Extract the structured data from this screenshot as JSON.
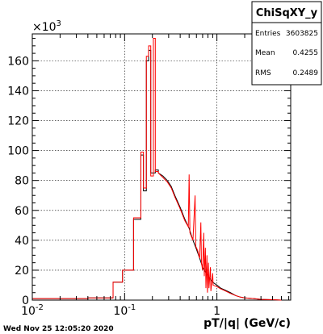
{
  "chart_data": {
    "type": "line",
    "title": "",
    "xlabel": "pT/|q| (GeV/c)",
    "ylabel": "",
    "x_scale": "log",
    "xlim": [
      0.01,
      6.3
    ],
    "ylim": [
      0,
      178000
    ],
    "y_exponent_label": "×10³",
    "y_exponent_sup": "3",
    "y_ticks": [
      0,
      20000,
      40000,
      60000,
      80000,
      100000,
      120000,
      140000,
      160000
    ],
    "y_tick_labels": [
      "0",
      "20",
      "40",
      "60",
      "80",
      "100",
      "120",
      "140",
      "160"
    ],
    "x_tick_labels": [
      {
        "value": 0.01,
        "base": "10",
        "exp": "-2"
      },
      {
        "value": 0.1,
        "base": "10",
        "exp": "-1"
      },
      {
        "value": 1,
        "text": "1"
      }
    ],
    "grid": true,
    "series": [
      {
        "color": "#000000",
        "points": [
          [
            0.01,
            0
          ],
          [
            0.01,
            1000
          ],
          [
            0.04,
            1000
          ],
          [
            0.04,
            1500
          ],
          [
            0.075,
            1500
          ],
          [
            0.075,
            12000
          ],
          [
            0.095,
            12000
          ],
          [
            0.095,
            20000
          ],
          [
            0.125,
            20000
          ],
          [
            0.125,
            54000
          ],
          [
            0.15,
            54000
          ],
          [
            0.15,
            97000
          ],
          [
            0.16,
            97000
          ],
          [
            0.16,
            73000
          ],
          [
            0.172,
            73000
          ],
          [
            0.172,
            160000
          ],
          [
            0.182,
            160000
          ],
          [
            0.182,
            167000
          ],
          [
            0.192,
            167000
          ],
          [
            0.192,
            85000
          ],
          [
            0.215,
            85000
          ],
          [
            0.215,
            87000
          ],
          [
            0.232,
            87000
          ],
          [
            0.232,
            85000
          ],
          [
            0.26,
            83000
          ],
          [
            0.29,
            80000
          ],
          [
            0.32,
            76000
          ],
          [
            0.35,
            70000
          ],
          [
            0.4,
            62000
          ],
          [
            0.45,
            54000
          ],
          [
            0.5,
            48000
          ],
          [
            0.55,
            40000
          ],
          [
            0.6,
            34000
          ],
          [
            0.65,
            28000
          ],
          [
            0.7,
            22000
          ],
          [
            0.8,
            16000
          ],
          [
            0.9,
            12000
          ],
          [
            1.0,
            10000
          ],
          [
            1.1,
            8000
          ],
          [
            1.2,
            7000
          ],
          [
            1.4,
            5000
          ],
          [
            1.6,
            3000
          ],
          [
            1.8,
            2000
          ],
          [
            2.0,
            1500
          ],
          [
            2.5,
            1000
          ],
          [
            3.0,
            500
          ],
          [
            4.0,
            300
          ],
          [
            5.0,
            0
          ]
        ]
      },
      {
        "color": "#ff0000",
        "points": [
          [
            0.01,
            0
          ],
          [
            0.01,
            1000
          ],
          [
            0.04,
            1000
          ],
          [
            0.04,
            1500
          ],
          [
            0.075,
            1500
          ],
          [
            0.075,
            12000
          ],
          [
            0.095,
            12000
          ],
          [
            0.095,
            20000
          ],
          [
            0.125,
            20000
          ],
          [
            0.125,
            55000
          ],
          [
            0.15,
            55000
          ],
          [
            0.15,
            99000
          ],
          [
            0.16,
            99000
          ],
          [
            0.16,
            75000
          ],
          [
            0.172,
            75000
          ],
          [
            0.172,
            163000
          ],
          [
            0.182,
            163000
          ],
          [
            0.182,
            170000
          ],
          [
            0.192,
            170000
          ],
          [
            0.192,
            83000
          ],
          [
            0.205,
            83000
          ],
          [
            0.205,
            175000
          ],
          [
            0.215,
            175000
          ],
          [
            0.215,
            86000
          ],
          [
            0.232,
            86000
          ],
          [
            0.232,
            85000
          ],
          [
            0.26,
            82000
          ],
          [
            0.29,
            79000
          ],
          [
            0.32,
            75000
          ],
          [
            0.35,
            69000
          ],
          [
            0.4,
            61000
          ],
          [
            0.45,
            53000
          ],
          [
            0.49,
            49000
          ],
          [
            0.5,
            84000
          ],
          [
            0.51,
            45000
          ],
          [
            0.55,
            40000
          ],
          [
            0.58,
            70000
          ],
          [
            0.59,
            36000
          ],
          [
            0.62,
            33000
          ],
          [
            0.65,
            28000
          ],
          [
            0.67,
            52000
          ],
          [
            0.68,
            25000
          ],
          [
            0.7,
            20000
          ],
          [
            0.72,
            45000
          ],
          [
            0.73,
            16000
          ],
          [
            0.75,
            35000
          ],
          [
            0.76,
            8000
          ],
          [
            0.78,
            30000
          ],
          [
            0.79,
            5000
          ],
          [
            0.81,
            25000
          ],
          [
            0.82,
            8000
          ],
          [
            0.85,
            22000
          ],
          [
            0.86,
            6000
          ],
          [
            0.9,
            18000
          ],
          [
            0.91,
            10000
          ],
          [
            1.0,
            9000
          ],
          [
            1.1,
            7500
          ],
          [
            1.2,
            6500
          ],
          [
            1.4,
            4500
          ],
          [
            1.6,
            3000
          ],
          [
            1.8,
            2000
          ],
          [
            2.0,
            1500
          ],
          [
            2.5,
            1000
          ],
          [
            3.0,
            500
          ],
          [
            4.0,
            300
          ],
          [
            5.0,
            0
          ]
        ]
      }
    ]
  },
  "stats": {
    "title": "ChiSqXY_y",
    "rows": [
      {
        "label": "Entries",
        "value": "3603825"
      },
      {
        "label": "Mean",
        "value": "0.4255"
      },
      {
        "label": "RMS",
        "value": "0.2489"
      }
    ]
  },
  "footer": {
    "timestamp": "Wed Nov 25 12:05:20 2020"
  }
}
